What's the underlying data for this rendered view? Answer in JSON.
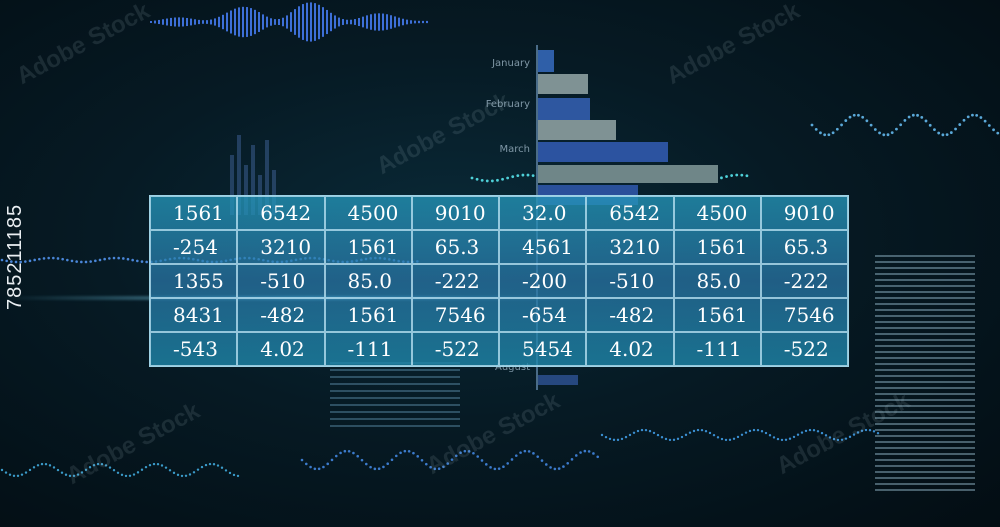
{
  "chart_months": [
    "January",
    "February",
    "March",
    "August"
  ],
  "table_rows": [
    [
      "1561",
      "6542",
      "4500",
      "9010",
      "32.0",
      "6542",
      "4500",
      "9010"
    ],
    [
      "-254",
      "3210",
      "1561",
      "65.3",
      "4561",
      "3210",
      "1561",
      "65.3"
    ],
    [
      "1355",
      "-510",
      "85.0",
      "-222",
      "-200",
      "-510",
      "85.0",
      "-222"
    ],
    [
      "8431",
      "-482",
      "1561",
      "7546",
      "-654",
      "-482",
      "1561",
      "7546"
    ],
    [
      "-543",
      "4.02",
      "-111",
      "-522",
      "5454",
      "4.02",
      "-111",
      "-522"
    ]
  ],
  "stock_id": "785211185",
  "watermark": "Adobe Stock",
  "colors": {
    "table_fill": "#2c96b8",
    "grid_line": "#bfe6f5",
    "bar_blue": "#2f5fa8",
    "bar_gray": "#8a9ea0",
    "glow": "#5ec8e0"
  }
}
